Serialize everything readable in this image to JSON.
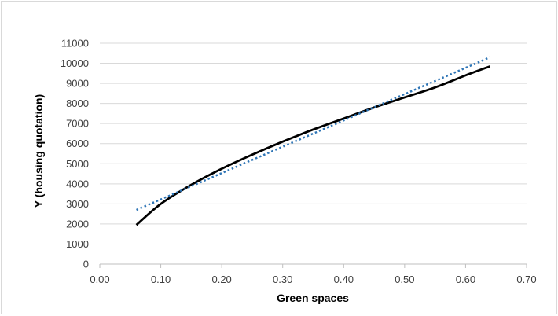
{
  "chart_data": {
    "type": "line",
    "title": "",
    "xlabel": "Green spaces",
    "ylabel": "Y (housing quotation)",
    "xlim": [
      0,
      0.7
    ],
    "ylim": [
      0,
      11000
    ],
    "x_ticks": [
      "0.00",
      "0.10",
      "0.20",
      "0.30",
      "0.40",
      "0.50",
      "0.60",
      "0.70"
    ],
    "y_ticks": [
      "0",
      "1000",
      "2000",
      "3000",
      "4000",
      "5000",
      "6000",
      "7000",
      "8000",
      "9000",
      "10000",
      "11000"
    ],
    "grid": "horizontal",
    "legend": "none",
    "series": [
      {
        "style": "solid",
        "color": "#000000",
        "x": [
          0.06,
          0.1,
          0.15,
          0.2,
          0.25,
          0.3,
          0.35,
          0.4,
          0.45,
          0.5,
          0.55,
          0.6,
          0.64
        ],
        "y": [
          1950,
          3000,
          3950,
          4750,
          5450,
          6100,
          6700,
          7250,
          7800,
          8300,
          8800,
          9400,
          9850
        ]
      },
      {
        "style": "dotted",
        "color": "#2e75b6",
        "x": [
          0.06,
          0.64
        ],
        "y": [
          2700,
          10300
        ]
      }
    ]
  }
}
